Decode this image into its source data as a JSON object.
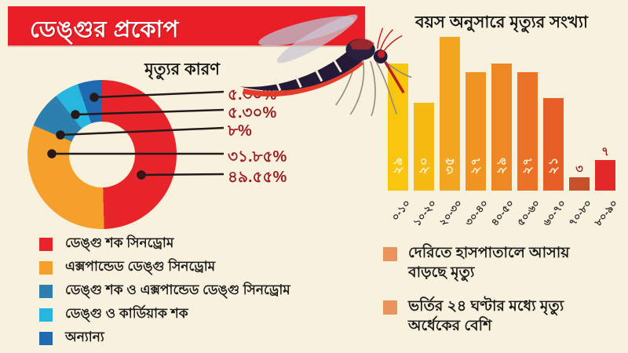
{
  "header": {
    "title": "ডেঙ্গুর প্রকোপ"
  },
  "chart_data": [
    {
      "type": "pie",
      "donut": true,
      "title": "মৃত্যুর কারণ",
      "labels": [
        "ডেঙ্গু শক সিনড্রোম",
        "এক্সপান্ডেড ডেঙ্গু সিনড্রোম",
        "ডেঙ্গু শক ও এক্সপান্ডেড ডেঙ্গু সিনড্রোম",
        "ডেঙ্গু ও কার্ডিয়াক শক",
        "অন্যান্য"
      ],
      "values": [
        49.55,
        31.85,
        8,
        5.3,
        5.3
      ],
      "value_labels": [
        "৪৯.৫৫%",
        "৩১.৮৫%",
        "৮%",
        "৫.৩০%",
        "৫.৩০%"
      ],
      "colors": [
        "#e8242b",
        "#f5a02c",
        "#2d80ad",
        "#27b6dd",
        "#1f6ab0"
      ],
      "legend_position": "bottom-left",
      "callout_order": [
        4,
        3,
        2,
        1,
        0
      ]
    },
    {
      "type": "bar",
      "title": "বয়স অনুসারে মৃত্যুর সংখ্যা",
      "categories": [
        "০-১০",
        "১০-২০",
        "২০-৩০",
        "৩০-৪০",
        "৪০-৫০",
        "৫০-৬০",
        "৬০-৭০",
        "৭০-৮০",
        "৮০-৯০"
      ],
      "values": [
        29,
        20,
        35,
        27,
        29,
        27,
        21,
        3,
        7
      ],
      "value_labels": [
        "২৯",
        "২০",
        "৩৫",
        "২৭",
        "২৯",
        "২৭",
        "২১",
        "৩",
        "৭"
      ],
      "colors": [
        "#f9c50d",
        "#f6ba12",
        "#f2a622",
        "#f09321",
        "#ee8825",
        "#eb7226",
        "#e85e27",
        "#c55029",
        "#e42a28"
      ],
      "ylim": [
        0,
        35
      ],
      "grid": false,
      "value_label_inside_color": "#fdf3dc",
      "value_label_outside_color": "#9a2125"
    }
  ],
  "notes": {
    "bullet_color": "#e9945c",
    "items": [
      "দেরিতে হাসপাতালে আসায় বাড়ছে মৃত্যু",
      "ভর্তির ২৪ ঘণ্টার মধ্যে মৃত্যু অর্ধেকের বেশি"
    ]
  },
  "palette": {
    "background": "#f8f1de",
    "banner": "#e91e27",
    "percent_text": "#9a2125",
    "heading_text": "#151515"
  }
}
